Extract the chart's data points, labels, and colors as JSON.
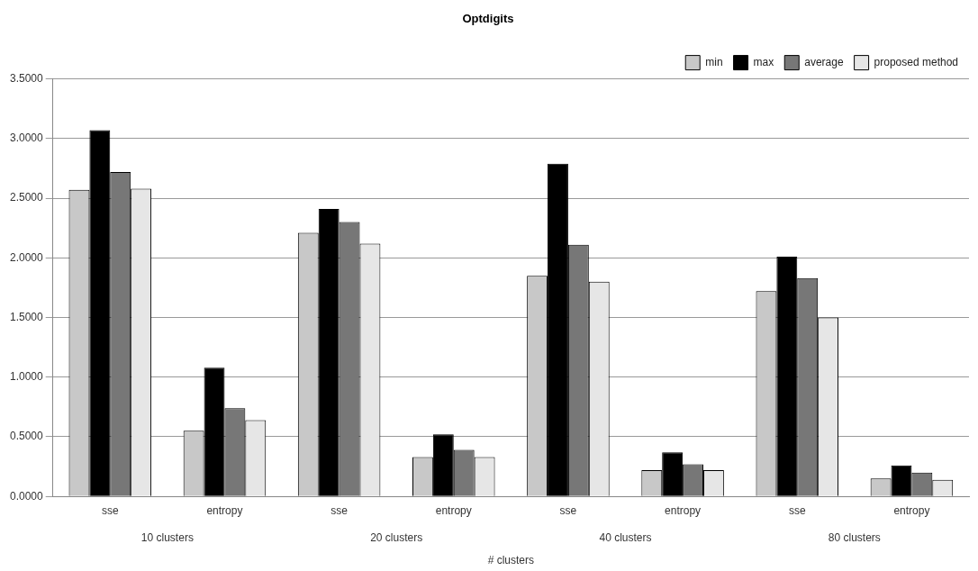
{
  "chart_data": {
    "type": "bar",
    "title": "Optdigits",
    "xlabel": "# clusters",
    "categories": [
      "sse",
      "entropy",
      "sse",
      "entropy",
      "sse",
      "entropy",
      "sse",
      "entropy"
    ],
    "annotations": [
      "10 clusters",
      "20 clusters",
      "40 clusters",
      "80 clusters"
    ],
    "series": [
      {
        "name": "min",
        "color": "#c8c8c8",
        "values": [
          2.57,
          0.55,
          2.21,
          0.33,
          1.85,
          0.22,
          1.72,
          0.15
        ]
      },
      {
        "name": "max",
        "color": "#000000",
        "values": [
          3.07,
          1.08,
          2.41,
          0.52,
          2.79,
          0.37,
          2.01,
          0.26
        ]
      },
      {
        "name": "average",
        "color": "#777777",
        "values": [
          2.72,
          0.74,
          2.3,
          0.39,
          2.11,
          0.27,
          1.83,
          0.2
        ]
      },
      {
        "name": "proposed method",
        "color": "#e6e6e6",
        "values": [
          2.58,
          0.64,
          2.12,
          0.33,
          1.8,
          0.22,
          1.5,
          0.14
        ]
      }
    ],
    "ylim": [
      0,
      3.5
    ],
    "yticks": [
      {
        "value": 0,
        "label": "0.0000"
      },
      {
        "value": 0.5,
        "label": "0.5000"
      },
      {
        "value": 1,
        "label": "1.0000"
      },
      {
        "value": 1.5,
        "label": "1.5000"
      },
      {
        "value": 2,
        "label": "2.0000"
      },
      {
        "value": 2.5,
        "label": "2.5000"
      },
      {
        "value": 3,
        "label": "3.0000"
      },
      {
        "value": 3.5,
        "label": "3.5000"
      }
    ],
    "grid": "y",
    "legend": "top right"
  }
}
